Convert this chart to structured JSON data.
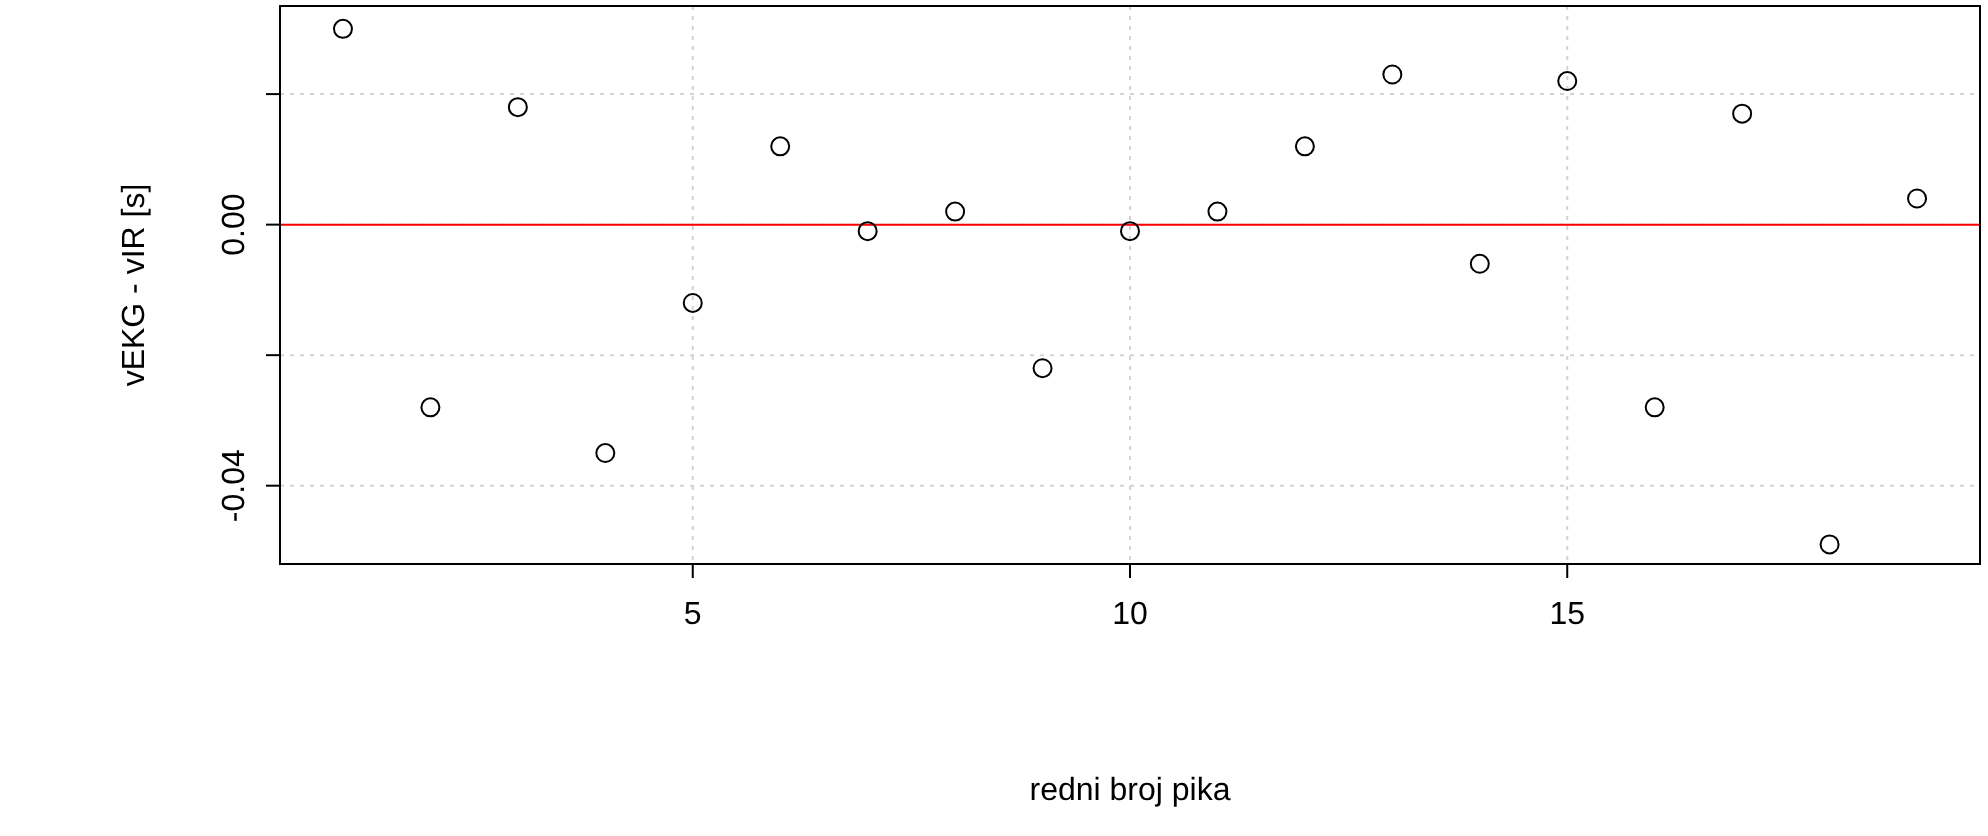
{
  "chart_data": {
    "type": "scatter",
    "xlabel": "redni broj pika",
    "ylabel": "vEKG - vIR [s]",
    "x": [
      1,
      2,
      3,
      4,
      5,
      6,
      7,
      8,
      9,
      10,
      11,
      12,
      13,
      14,
      15,
      16,
      17,
      18,
      19
    ],
    "series": [
      {
        "color": "#000000",
        "values": [
          0.03,
          -0.028,
          0.018,
          -0.035,
          -0.012,
          0.012,
          -0.001,
          0.002,
          -0.022,
          -0.001,
          0.002,
          0.012,
          0.023,
          -0.006,
          0.022,
          -0.028,
          0.017,
          -0.049,
          0.004
        ]
      }
    ],
    "xlim": [
      0.28,
      19.72
    ],
    "xticks": [
      5,
      10,
      15
    ],
    "ylim": [
      -0.052,
      0.0335
    ],
    "yticks": [
      {
        "value": -0.04,
        "label": "-0.04"
      },
      {
        "value": -0.02,
        "label": null
      },
      {
        "value": 0,
        "label": "0.00"
      },
      {
        "value": 0.02,
        "label": null
      }
    ],
    "grid": true,
    "marker": "circle",
    "ref_lines": [
      {
        "axis": "y",
        "value": 0,
        "color": "#ff0000"
      }
    ]
  }
}
